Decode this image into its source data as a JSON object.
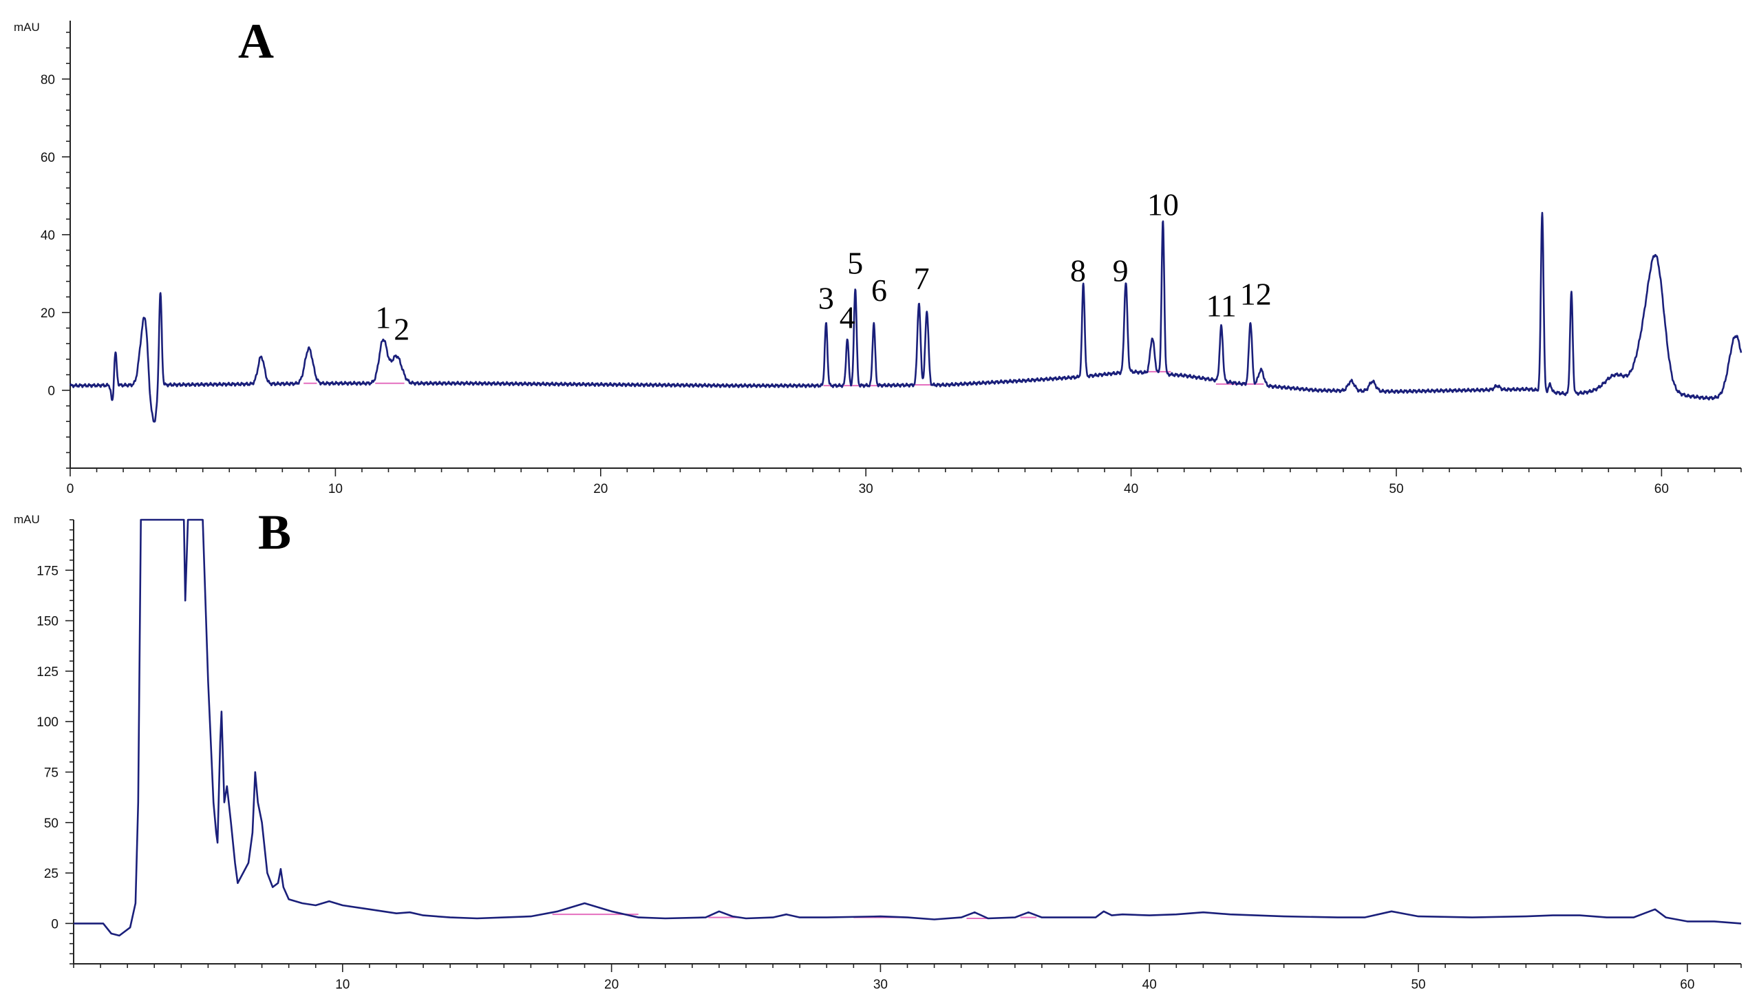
{
  "colors": {
    "trace": "#1a1f7a",
    "integration_baseline": "#e46fbf",
    "axis": "#222222",
    "background": "#ffffff"
  },
  "chart_data": [
    {
      "panel": "A",
      "type": "line",
      "y_unit": "mAU",
      "xlim": [
        0,
        63
      ],
      "ylim": [
        -20,
        95
      ],
      "x_ticks": [
        0,
        10,
        20,
        30,
        40,
        50,
        60
      ],
      "y_ticks": [
        0,
        20,
        40,
        60,
        80
      ],
      "grid": false,
      "baseline": [
        [
          0,
          1.2
        ],
        [
          10,
          1.8
        ],
        [
          15,
          1.8
        ],
        [
          25,
          1.2
        ],
        [
          29,
          1.2
        ],
        [
          33,
          1.4
        ],
        [
          36,
          2.5
        ],
        [
          38,
          3.4
        ],
        [
          40,
          4.8
        ],
        [
          42,
          3.8
        ],
        [
          44,
          1.8
        ],
        [
          47,
          0
        ],
        [
          50,
          -0.3
        ],
        [
          55,
          0.3
        ],
        [
          56.5,
          -1
        ],
        [
          58,
          0
        ],
        [
          60,
          0
        ],
        [
          61,
          -2
        ],
        [
          62,
          -2
        ]
      ],
      "peaks": [
        [
          1.6,
          -5,
          0.05
        ],
        [
          1.7,
          9,
          0.05
        ],
        [
          2.7,
          10,
          0.12
        ],
        [
          2.85,
          12,
          0.1
        ],
        [
          3.05,
          -6,
          0.1
        ],
        [
          3.2,
          -7,
          0.08
        ],
        [
          3.4,
          24,
          0.05
        ],
        [
          7.2,
          7,
          0.12
        ],
        [
          9.0,
          9,
          0.15
        ],
        [
          11.8,
          11,
          0.15
        ],
        [
          12.3,
          7,
          0.2
        ],
        [
          28.5,
          16,
          0.05
        ],
        [
          29.3,
          12,
          0.05
        ],
        [
          29.6,
          25,
          0.05
        ],
        [
          30.3,
          16,
          0.05
        ],
        [
          32.0,
          21,
          0.06
        ],
        [
          32.3,
          19,
          0.06
        ],
        [
          38.2,
          24,
          0.05
        ],
        [
          39.8,
          23,
          0.06
        ],
        [
          40.8,
          9,
          0.08
        ],
        [
          41.2,
          39,
          0.05
        ],
        [
          43.4,
          14,
          0.06
        ],
        [
          44.5,
          16,
          0.06
        ],
        [
          44.9,
          4,
          0.1
        ],
        [
          48.3,
          2.5,
          0.12
        ],
        [
          49.1,
          2.5,
          0.12
        ],
        [
          53.8,
          1,
          0.1
        ],
        [
          55.5,
          46,
          0.05
        ],
        [
          55.8,
          2,
          0.05
        ],
        [
          56.6,
          26,
          0.05
        ],
        [
          58.3,
          4,
          0.4
        ],
        [
          59.3,
          10,
          0.3
        ],
        [
          59.8,
          32,
          0.3
        ],
        [
          61.0,
          0.5,
          0.3
        ],
        [
          62.8,
          16,
          0.25
        ]
      ],
      "peak_labels": [
        {
          "text": "1",
          "x": 11.8,
          "y": 16
        },
        {
          "text": "2",
          "x": 12.5,
          "y": 13
        },
        {
          "text": "3",
          "x": 28.5,
          "y": 21
        },
        {
          "text": "4",
          "x": 29.3,
          "y": 16
        },
        {
          "text": "5",
          "x": 29.6,
          "y": 30
        },
        {
          "text": "6",
          "x": 30.5,
          "y": 23
        },
        {
          "text": "7",
          "x": 32.1,
          "y": 26
        },
        {
          "text": "8",
          "x": 38.0,
          "y": 28
        },
        {
          "text": "9",
          "x": 39.6,
          "y": 28
        },
        {
          "text": "10",
          "x": 41.2,
          "y": 45
        },
        {
          "text": "11",
          "x": 43.4,
          "y": 19
        },
        {
          "text": "12",
          "x": 44.7,
          "y": 22
        }
      ],
      "integration_baselines": [
        [
          8.8,
          9.3,
          1.8
        ],
        [
          11.5,
          12.6,
          1.8
        ],
        [
          28.4,
          31,
          1.2
        ],
        [
          31.8,
          32.5,
          1.4
        ],
        [
          40.5,
          41.5,
          4.8
        ],
        [
          43.2,
          45,
          1.6
        ]
      ]
    },
    {
      "panel": "B",
      "type": "line",
      "y_unit": "mAU",
      "xlim": [
        0,
        62
      ],
      "ylim": [
        -20,
        200
      ],
      "x_ticks": [
        10,
        20,
        30,
        40,
        50,
        60
      ],
      "y_ticks": [
        0,
        25,
        50,
        75,
        100,
        125,
        150,
        175
      ],
      "grid": false,
      "trace": [
        [
          0,
          0
        ],
        [
          1.1,
          0
        ],
        [
          1.4,
          -5
        ],
        [
          1.7,
          -6
        ],
        [
          2.1,
          -2
        ],
        [
          2.3,
          10
        ],
        [
          2.4,
          60
        ],
        [
          2.5,
          200
        ],
        [
          2.8,
          200
        ],
        [
          3.5,
          200
        ],
        [
          4.1,
          200
        ],
        [
          4.15,
          160
        ],
        [
          4.25,
          200
        ],
        [
          4.6,
          200
        ],
        [
          4.8,
          200
        ],
        [
          4.9,
          160
        ],
        [
          5.0,
          120
        ],
        [
          5.1,
          90
        ],
        [
          5.2,
          60
        ],
        [
          5.3,
          45
        ],
        [
          5.35,
          40
        ],
        [
          5.45,
          90
        ],
        [
          5.5,
          105
        ],
        [
          5.6,
          60
        ],
        [
          5.7,
          68
        ],
        [
          5.85,
          50
        ],
        [
          6.0,
          30
        ],
        [
          6.1,
          20
        ],
        [
          6.3,
          25
        ],
        [
          6.5,
          30
        ],
        [
          6.65,
          45
        ],
        [
          6.75,
          75
        ],
        [
          6.85,
          60
        ],
        [
          7.0,
          50
        ],
        [
          7.2,
          25
        ],
        [
          7.4,
          18
        ],
        [
          7.6,
          20
        ],
        [
          7.7,
          27
        ],
        [
          7.8,
          18
        ],
        [
          8.0,
          12
        ],
        [
          8.5,
          10
        ],
        [
          9.0,
          9
        ],
        [
          9.5,
          11
        ],
        [
          10.0,
          9
        ],
        [
          11,
          7
        ],
        [
          12,
          5
        ],
        [
          12.5,
          5.5
        ],
        [
          13,
          4
        ],
        [
          14,
          3
        ],
        [
          15,
          2.5
        ],
        [
          16,
          3
        ],
        [
          17,
          3.5
        ],
        [
          18,
          6
        ],
        [
          19,
          10
        ],
        [
          20,
          6
        ],
        [
          21,
          3
        ],
        [
          22,
          2.5
        ],
        [
          23.5,
          3
        ],
        [
          24,
          6
        ],
        [
          24.5,
          3.5
        ],
        [
          25,
          2.5
        ],
        [
          26,
          3
        ],
        [
          26.5,
          4.5
        ],
        [
          27,
          3
        ],
        [
          28,
          3
        ],
        [
          30,
          3.5
        ],
        [
          31,
          3
        ],
        [
          32,
          2
        ],
        [
          33,
          3
        ],
        [
          33.5,
          5.5
        ],
        [
          34,
          2.5
        ],
        [
          35,
          3
        ],
        [
          35.5,
          5.5
        ],
        [
          36,
          3
        ],
        [
          37,
          3
        ],
        [
          38,
          3
        ],
        [
          38.3,
          6
        ],
        [
          38.6,
          4
        ],
        [
          39,
          4.5
        ],
        [
          40,
          4
        ],
        [
          41,
          4.5
        ],
        [
          42,
          5.5
        ],
        [
          43,
          4.5
        ],
        [
          45,
          3.5
        ],
        [
          47,
          3
        ],
        [
          48,
          3
        ],
        [
          49,
          6
        ],
        [
          50,
          3.5
        ],
        [
          52,
          3
        ],
        [
          54,
          3.5
        ],
        [
          55,
          4
        ],
        [
          56,
          4
        ],
        [
          57,
          3
        ],
        [
          58,
          3
        ],
        [
          58.4,
          5
        ],
        [
          58.8,
          7
        ],
        [
          59.2,
          3
        ],
        [
          60,
          1
        ],
        [
          61,
          1
        ],
        [
          62,
          0
        ]
      ],
      "integration_baselines": [
        [
          17.8,
          21.0,
          4.5
        ],
        [
          23.6,
          24.8,
          3
        ],
        [
          29,
          31,
          3
        ],
        [
          33.2,
          34,
          2.5
        ],
        [
          35.2,
          35.8,
          3
        ]
      ]
    }
  ],
  "panels": {
    "A": {
      "letter": "A",
      "y_unit_label": "mAU"
    },
    "B": {
      "letter": "B",
      "y_unit_label": "mAU"
    }
  }
}
